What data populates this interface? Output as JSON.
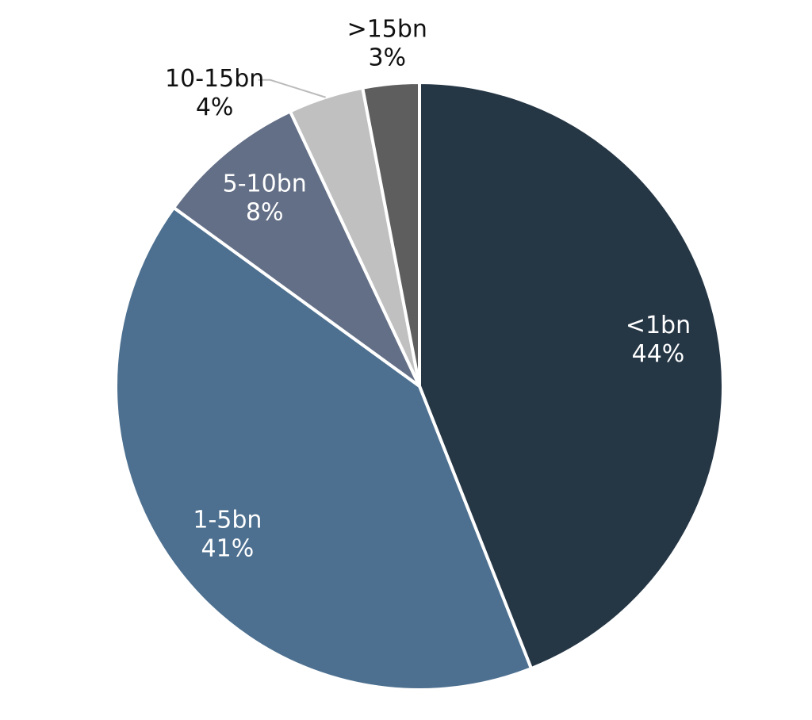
{
  "chart_data": {
    "type": "pie",
    "categories": [
      "<1bn",
      "1-5bn",
      "5-10bn",
      "10-15bn",
      ">15bn"
    ],
    "values": [
      44,
      41,
      8,
      4,
      3
    ],
    "value_labels": [
      "44%",
      "41%",
      "8%",
      "4%",
      "3%"
    ],
    "colors": [
      "#253645",
      "#4d7090",
      "#636f86",
      "#c0c0c0",
      "#5e5e5e"
    ]
  }
}
